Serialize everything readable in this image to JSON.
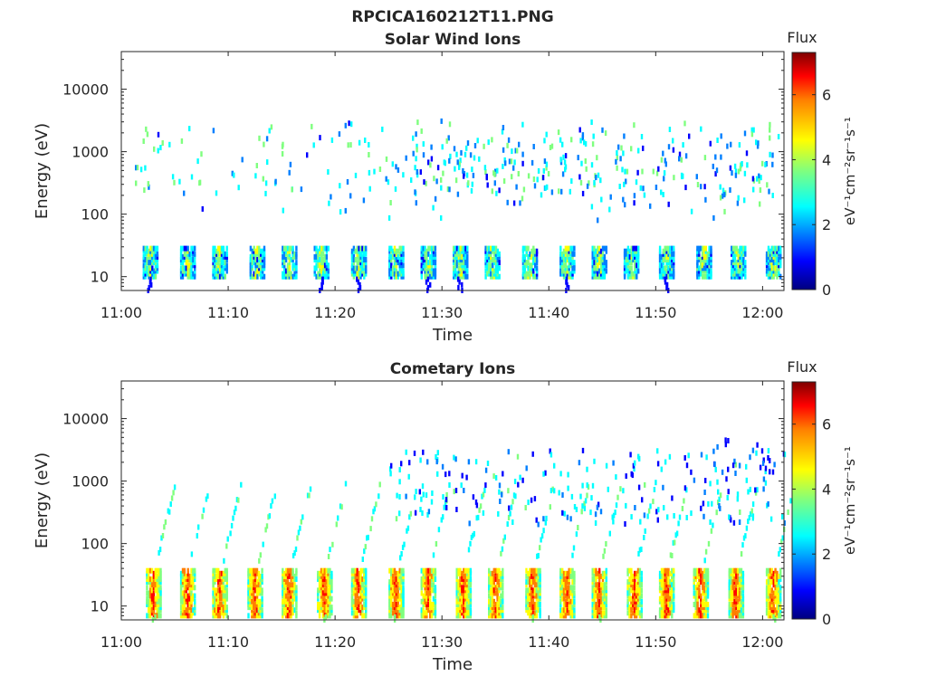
{
  "figure_title": "RPCICA160212T11.PNG",
  "colormap": [
    "#00007f",
    "#0000ff",
    "#007fff",
    "#00ffff",
    "#7fff7f",
    "#ffff00",
    "#ff7f00",
    "#ff0000",
    "#7f0000"
  ],
  "chart_data": [
    {
      "type": "heatmap",
      "title": "Solar Wind Ions",
      "xlabel": "Time",
      "ylabel": "Energy (eV)",
      "x_ticks": [
        "11:00",
        "11:10",
        "11:20",
        "11:30",
        "11:40",
        "11:50",
        "12:00"
      ],
      "x_range_minutes": [
        0,
        62
      ],
      "y_scale": "log",
      "y_ticks": [
        "10",
        "100",
        "1000",
        "10000"
      ],
      "ylim": [
        6,
        40000
      ],
      "colorbar": {
        "title": "Flux",
        "label": "eV⁻¹cm⁻²sr⁻¹s⁻¹",
        "ticks": [
          "0",
          "2",
          "4",
          "6"
        ],
        "range": [
          0,
          7.3
        ]
      },
      "low_energy_bursts_minutes": [
        2.6,
        6.1,
        9.1,
        12.6,
        15.6,
        18.6,
        22.1,
        25.6,
        28.6,
        31.6,
        34.6,
        38.1,
        41.6,
        44.6,
        47.6,
        50.9,
        54.4,
        57.6,
        60.9
      ],
      "low_energy_band_eV": [
        10,
        30
      ],
      "low_energy_flux_typical": 3.5,
      "high_energy_band_eV": [
        200,
        2000
      ],
      "high_energy_flux_typical": 2.8
    },
    {
      "type": "heatmap",
      "title": "Cometary Ions",
      "xlabel": "Time",
      "ylabel": "Energy (eV)",
      "x_ticks": [
        "11:00",
        "11:10",
        "11:20",
        "11:30",
        "11:40",
        "11:50",
        "12:00"
      ],
      "x_range_minutes": [
        0,
        62
      ],
      "y_scale": "log",
      "y_ticks": [
        "10",
        "100",
        "1000",
        "10000"
      ],
      "ylim": [
        6,
        40000
      ],
      "colorbar": {
        "title": "Flux",
        "label": "eV⁻¹cm⁻²sr⁻¹s⁻¹",
        "ticks": [
          "0",
          "2",
          "4",
          "6"
        ],
        "range": [
          0,
          7.3
        ]
      },
      "low_energy_bursts_minutes": [
        2.9,
        6.1,
        9.1,
        12.4,
        15.6,
        18.9,
        22.1,
        25.6,
        28.6,
        31.9,
        34.9,
        38.4,
        41.6,
        44.6,
        47.9,
        50.9,
        54.1,
        57.4,
        60.9
      ],
      "low_energy_band_eV": [
        7,
        40
      ],
      "low_energy_flux_typical": 5.2,
      "dispersion_tail_top_eV": 800,
      "dispersion_tail_flux_typical": 3.0
    }
  ]
}
